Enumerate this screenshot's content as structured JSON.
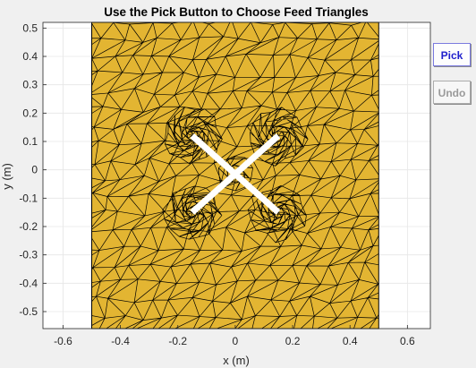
{
  "figure": {
    "title": "Use the Pick Button to Choose Feed Triangles",
    "xlabel": "x (m)",
    "ylabel": "y (m)",
    "xticks": [
      "-0.6",
      "-0.4",
      "-0.2",
      "0",
      "0.2",
      "0.4",
      "0.6"
    ],
    "yticks": [
      "0.5",
      "0.4",
      "0.3",
      "0.2",
      "0.1",
      "0",
      "-0.1",
      "-0.2",
      "-0.3",
      "-0.4",
      "-0.5"
    ],
    "xlim": [
      -0.67,
      0.68
    ],
    "ylim": [
      -0.56,
      0.52
    ],
    "plate": {
      "xmin": -0.5,
      "xmax": 0.5,
      "ymin": -0.56,
      "ymax": 0.52
    },
    "arms": [
      {
        "x1": -0.15,
        "y1": 0.12,
        "x2": 0.15,
        "y2": -0.15
      },
      {
        "x1": -0.15,
        "y1": -0.15,
        "x2": 0.15,
        "y2": 0.12
      }
    ],
    "colors": {
      "mesh_fill": "#e3b532",
      "mesh_edge": "#000000",
      "axes_bg": "#ffffff",
      "grid": "#e6e6e6",
      "figure_bg": "#f0f0f0",
      "antenna": "#ffffff"
    },
    "grid": true
  },
  "controls": {
    "pick_label": "Pick",
    "undo_label": "Undo",
    "pick_icon": "none",
    "undo_icon": "none"
  }
}
